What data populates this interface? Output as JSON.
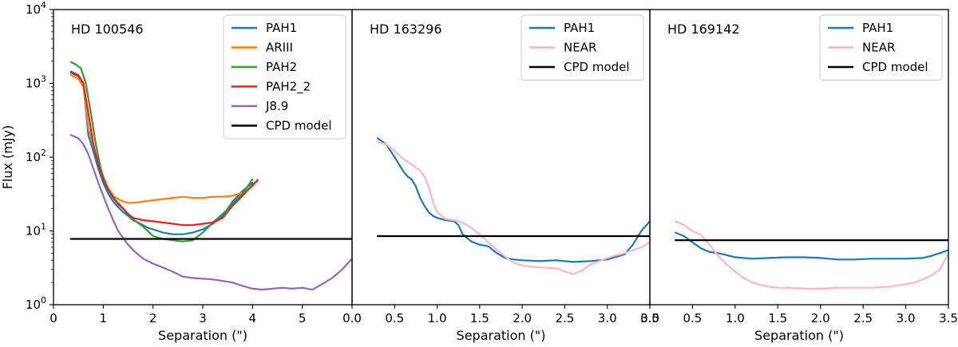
{
  "chart_data": {
    "type": "line",
    "ylabel": "Flux (mJy)",
    "yscale": "log",
    "ylim": [
      1,
      10000
    ],
    "y_ticks": [
      {
        "value": 1,
        "base": "10",
        "exp": "0"
      },
      {
        "value": 10,
        "base": "10",
        "exp": "1"
      },
      {
        "value": 100,
        "base": "10",
        "exp": "2"
      },
      {
        "value": 1000,
        "base": "10",
        "exp": "3"
      },
      {
        "value": 10000,
        "base": "10",
        "exp": "4"
      }
    ],
    "legend_position": "top-right",
    "panels": [
      {
        "title": "HD 100546",
        "xlabel": "Separation (\")",
        "xlim": [
          0,
          6
        ],
        "x_ticks": [
          {
            "value": 0,
            "label": "0"
          },
          {
            "value": 1,
            "label": "1"
          },
          {
            "value": 2,
            "label": "2"
          },
          {
            "value": 3,
            "label": "3"
          },
          {
            "value": 4,
            "label": "4"
          },
          {
            "value": 5,
            "label": "5"
          }
        ],
        "series": [
          {
            "name": "PAH1",
            "color": "#1f77b4",
            "x": [
              0.35,
              0.5,
              0.6,
              0.7,
              0.8,
              0.9,
              1.0,
              1.1,
              1.2,
              1.3,
              1.4,
              1.5,
              1.6,
              1.7,
              1.8,
              1.9,
              2.0,
              2.2,
              2.4,
              2.6,
              2.8,
              3.0,
              3.2,
              3.4,
              3.6,
              3.8,
              4.0
            ],
            "y": [
              1450,
              1300,
              1000,
              200,
              120,
              70,
              45,
              32,
              25,
              21,
              18,
              16,
              14,
              13,
              12,
              11,
              10.5,
              9.5,
              9,
              9,
              9.5,
              10.5,
              12.5,
              16,
              25,
              35,
              45
            ]
          },
          {
            "name": "ARIII",
            "color": "#ff7f0e",
            "x": [
              0.35,
              0.5,
              0.6,
              0.7,
              0.8,
              0.9,
              1.0,
              1.1,
              1.2,
              1.3,
              1.4,
              1.5,
              1.6,
              1.8,
              2.0,
              2.2,
              2.4,
              2.6,
              2.8,
              3.0,
              3.2,
              3.4,
              3.6,
              3.8,
              4.0,
              4.1
            ],
            "y": [
              1300,
              1150,
              900,
              250,
              140,
              85,
              55,
              38,
              30,
              27,
              25,
              24,
              24,
              25,
              26,
              27,
              28,
              29,
              28,
              28,
              29,
              29,
              30,
              33,
              40,
              50
            ]
          },
          {
            "name": "PAH2",
            "color": "#2ca02c",
            "x": [
              0.35,
              0.45,
              0.55,
              0.65,
              0.75,
              0.85,
              0.95,
              1.05,
              1.15,
              1.25,
              1.35,
              1.5,
              1.65,
              1.8,
              2.0,
              2.2,
              2.4,
              2.6,
              2.8,
              3.0,
              3.2,
              3.4,
              3.6,
              3.8,
              4.0
            ],
            "y": [
              1950,
              1800,
              1600,
              1000,
              400,
              150,
              70,
              42,
              32,
              26,
              22,
              17,
              13.5,
              11.5,
              8.5,
              7.8,
              7.5,
              7.2,
              7.5,
              9.5,
              13,
              17,
              23,
              32,
              50
            ]
          },
          {
            "name": "PAH2_2",
            "color": "#d62728",
            "x": [
              0.35,
              0.5,
              0.6,
              0.7,
              0.8,
              0.9,
              1.0,
              1.1,
              1.2,
              1.3,
              1.4,
              1.5,
              1.6,
              1.8,
              2.0,
              2.2,
              2.4,
              2.6,
              2.8,
              3.0,
              3.2,
              3.4,
              3.6,
              3.8,
              4.0,
              4.1
            ],
            "y": [
              1400,
              1250,
              1000,
              400,
              150,
              80,
              50,
              36,
              28,
              23,
              20,
              17,
              15,
              14,
              13.5,
              13,
              12.5,
              12,
              12,
              12.5,
              13,
              15,
              22,
              30,
              42,
              48
            ]
          },
          {
            "name": "J8.9",
            "color": "#9467bd",
            "x": [
              0.35,
              0.5,
              0.6,
              0.7,
              0.8,
              0.9,
              1.0,
              1.1,
              1.2,
              1.3,
              1.4,
              1.5,
              1.6,
              1.7,
              1.8,
              2.0,
              2.2,
              2.4,
              2.6,
              2.8,
              3.0,
              3.2,
              3.4,
              3.6,
              3.8,
              4.0,
              4.2,
              4.4,
              4.6,
              4.8,
              5.0,
              5.2,
              5.4,
              5.6,
              5.8,
              6.0
            ],
            "y": [
              200,
              180,
              150,
              110,
              70,
              45,
              30,
              20,
              14,
              10,
              8,
              6.5,
              5.5,
              4.8,
              4.2,
              3.6,
              3.2,
              2.8,
              2.4,
              2.3,
              2.25,
              2.2,
              2.1,
              2.0,
              1.8,
              1.65,
              1.6,
              1.65,
              1.7,
              1.65,
              1.7,
              1.6,
              1.9,
              2.3,
              3.0,
              4.2
            ]
          },
          {
            "name": "CPD model",
            "color": "#000000",
            "x": [
              0.35,
              6.0
            ],
            "y": [
              7.8,
              7.8
            ]
          }
        ]
      },
      {
        "title": "HD 163296",
        "xlabel": "Separation (\")",
        "xlim": [
          0,
          3.5
        ],
        "x_ticks": [
          {
            "value": 0,
            "label": "0.0"
          },
          {
            "value": 0.5,
            "label": "0.5"
          },
          {
            "value": 1.0,
            "label": "1.0"
          },
          {
            "value": 1.5,
            "label": "1.5"
          },
          {
            "value": 2.0,
            "label": "2.0"
          },
          {
            "value": 2.5,
            "label": "2.5"
          },
          {
            "value": 3.0,
            "label": "3.0"
          },
          {
            "value": 3.5,
            "label": "3.5"
          }
        ],
        "series": [
          {
            "name": "PAH1",
            "color": "#1f77b4",
            "x": [
              0.3,
              0.4,
              0.5,
              0.6,
              0.65,
              0.7,
              0.75,
              0.8,
              0.85,
              0.9,
              0.95,
              1.0,
              1.05,
              1.1,
              1.2,
              1.25,
              1.3,
              1.4,
              1.5,
              1.6,
              1.7,
              1.8,
              1.9,
              2.0,
              2.2,
              2.4,
              2.6,
              2.8,
              3.0,
              3.2,
              3.3,
              3.4,
              3.5
            ],
            "y": [
              180,
              150,
              100,
              65,
              55,
              50,
              40,
              28,
              22,
              18,
              16,
              15,
              14.5,
              14,
              13.5,
              12,
              9,
              7.2,
              6.5,
              6.2,
              5,
              4.3,
              4.1,
              4.0,
              3.9,
              4.0,
              3.8,
              3.9,
              4.1,
              4.8,
              6.5,
              10,
              13.5
            ]
          },
          {
            "name": "NEAR",
            "color": "#ffb6c1",
            "x": [
              0.3,
              0.4,
              0.5,
              0.6,
              0.7,
              0.8,
              0.85,
              0.9,
              0.95,
              1.0,
              1.1,
              1.2,
              1.3,
              1.4,
              1.5,
              1.6,
              1.7,
              1.8,
              1.9,
              2.0,
              2.2,
              2.4,
              2.5,
              2.6,
              2.7,
              2.8,
              3.0,
              3.2,
              3.4,
              3.5
            ],
            "y": [
              160,
              150,
              120,
              95,
              80,
              65,
              55,
              40,
              25,
              18,
              14.5,
              14,
              13,
              11,
              9,
              7,
              5.5,
              4.5,
              3.7,
              3.4,
              3.2,
              3.1,
              2.8,
              2.6,
              2.9,
              3.5,
              4.3,
              5.0,
              6.0,
              7.0
            ]
          },
          {
            "name": "CPD model",
            "color": "#000000",
            "x": [
              0.3,
              3.5
            ],
            "y": [
              8.5,
              8.5
            ]
          }
        ]
      },
      {
        "title": "HD 169142",
        "xlabel": "Separation (\")",
        "xlim": [
          0,
          3.5
        ],
        "x_ticks": [
          {
            "value": 0,
            "label": "0.0"
          },
          {
            "value": 0.5,
            "label": "0.5"
          },
          {
            "value": 1.0,
            "label": "1.0"
          },
          {
            "value": 1.5,
            "label": "1.5"
          },
          {
            "value": 2.0,
            "label": "2.0"
          },
          {
            "value": 2.5,
            "label": "2.5"
          },
          {
            "value": 3.0,
            "label": "3.0"
          },
          {
            "value": 3.5,
            "label": "3.5"
          }
        ],
        "series": [
          {
            "name": "PAH1",
            "color": "#1f77b4",
            "x": [
              0.3,
              0.4,
              0.5,
              0.6,
              0.7,
              0.8,
              0.9,
              1.0,
              1.2,
              1.4,
              1.6,
              1.8,
              2.0,
              2.2,
              2.4,
              2.6,
              2.8,
              3.0,
              3.2,
              3.3,
              3.4,
              3.5
            ],
            "y": [
              9.5,
              8.5,
              7.0,
              5.8,
              5.2,
              5.0,
              4.7,
              4.4,
              4.2,
              4.3,
              4.4,
              4.4,
              4.3,
              4.1,
              4.1,
              4.2,
              4.2,
              4.2,
              4.3,
              4.6,
              5.0,
              5.5
            ]
          },
          {
            "name": "NEAR",
            "color": "#ffb6c1",
            "x": [
              0.3,
              0.4,
              0.5,
              0.6,
              0.7,
              0.8,
              0.9,
              1.0,
              1.1,
              1.2,
              1.3,
              1.4,
              1.5,
              1.6,
              1.8,
              2.0,
              2.2,
              2.4,
              2.6,
              2.8,
              3.0,
              3.1,
              3.2,
              3.3,
              3.4,
              3.5
            ],
            "y": [
              13.5,
              12,
              10,
              8.8,
              6.5,
              4.6,
              3.5,
              2.8,
              2.3,
              2.0,
              1.85,
              1.75,
              1.7,
              1.7,
              1.65,
              1.65,
              1.7,
              1.7,
              1.7,
              1.75,
              1.9,
              2.0,
              2.2,
              2.5,
              3.0,
              5.0
            ]
          },
          {
            "name": "CPD model",
            "color": "#000000",
            "x": [
              0.3,
              3.5
            ],
            "y": [
              7.5,
              7.5
            ]
          }
        ]
      }
    ]
  }
}
